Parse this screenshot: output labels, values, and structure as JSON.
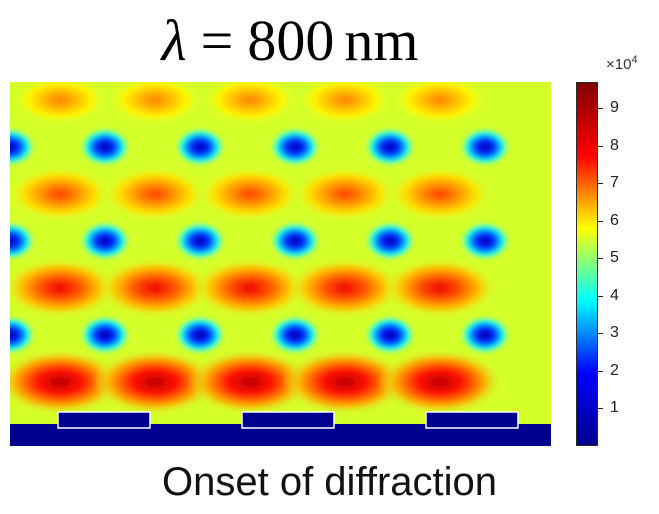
{
  "title": {
    "symbol": "λ",
    "equals": "=",
    "value": "800",
    "unit": "nm"
  },
  "caption": "Onset of diffraction",
  "chart_data": {
    "type": "heatmap",
    "title": "λ = 800 nm",
    "colormap": "jet",
    "colorbar": {
      "exponent_base": "×10",
      "exponent_power": "4",
      "range": [
        0,
        97000
      ],
      "ticks": [
        1,
        2,
        3,
        4,
        5,
        6,
        7,
        8,
        9
      ],
      "tick_labels": [
        "1",
        "2",
        "3",
        "4",
        "5",
        "6",
        "7",
        "8",
        "9"
      ]
    },
    "pattern": {
      "columns_per_row": 5,
      "rows": [
        {
          "kind": "maxima",
          "peak_value": 68000
        },
        {
          "kind": "minima",
          "value": 5000
        },
        {
          "kind": "maxima",
          "peak_value": 73000
        },
        {
          "kind": "minima",
          "value": 5000
        },
        {
          "kind": "maxima",
          "peak_value": 80000
        },
        {
          "kind": "minima",
          "value": 4000
        },
        {
          "kind": "maxima",
          "peak_value": 88000
        }
      ],
      "background_value": 55000,
      "substrate_value": 0,
      "grating_period_count": 3
    }
  },
  "colors": {
    "jet": [
      "#00008f",
      "#0000ff",
      "#00ffff",
      "#ffff00",
      "#ff0000",
      "#800000"
    ]
  }
}
